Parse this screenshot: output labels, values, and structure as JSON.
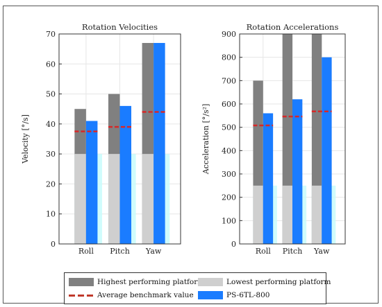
{
  "chart_data": [
    {
      "type": "bar",
      "title": "Rotation Velocities",
      "ylabel": "Velocity [°/s]",
      "xlabel": "",
      "categories": [
        "Roll",
        "Pitch",
        "Yaw"
      ],
      "ylim": [
        0,
        70
      ],
      "yticks": [
        0,
        10,
        20,
        30,
        40,
        50,
        60,
        70
      ],
      "grid": true,
      "series": [
        {
          "name": "Highest performing platform",
          "values": [
            45,
            50,
            67
          ]
        },
        {
          "name": "Lowest performing platform",
          "values": [
            30,
            30,
            30
          ]
        },
        {
          "name": "Average benchmark value",
          "values": [
            37.5,
            39,
            44
          ]
        },
        {
          "name": "PS-6TL-800",
          "values": [
            41,
            46,
            67
          ]
        }
      ]
    },
    {
      "type": "bar",
      "title": "Rotation Accelerations",
      "ylabel": "Acceleration [°/s²]",
      "xlabel": "",
      "categories": [
        "Roll",
        "Pitch",
        "Yaw"
      ],
      "ylim": [
        0,
        900
      ],
      "yticks": [
        0,
        100,
        200,
        300,
        400,
        500,
        600,
        700,
        800,
        900
      ],
      "grid": true,
      "series": [
        {
          "name": "Highest performing platform",
          "values": [
            700,
            900,
            900
          ]
        },
        {
          "name": "Lowest performing platform",
          "values": [
            250,
            250,
            250
          ]
        },
        {
          "name": "Average benchmark value",
          "values": [
            508,
            546,
            568
          ]
        },
        {
          "name": "PS-6TL-800",
          "values": [
            560,
            620,
            800
          ]
        }
      ]
    }
  ],
  "colors": {
    "highest": "#808080",
    "lowest": "#cfcfcf",
    "average": "#d62828",
    "ps": "#1a7cff",
    "lowest_highlight": "#c8fbfb"
  },
  "legend": {
    "highest_label": "Highest performing platform",
    "lowest_label": "Lowest performing platform",
    "average_label": "Average benchmark value",
    "ps_label": "PS-6TL-800",
    "placement": "bottom"
  }
}
